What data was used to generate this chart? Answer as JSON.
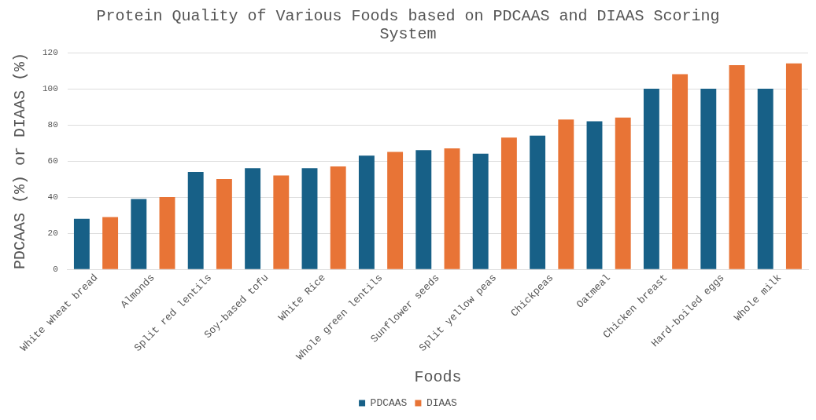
{
  "chart_data": {
    "type": "bar",
    "title": "Protein Quality of Various Foods based on PDCAAS and DIAAS Scoring System",
    "xlabel": "Foods",
    "ylabel": "PDCAAS (%) or DIAAS (%)",
    "categories": [
      "White wheat bread",
      "Almonds",
      "Split red lentils",
      "Soy-based tofu",
      "White Rice",
      "Whole green lentils",
      "Sunflower seeds",
      "Split yellow peas",
      "Chickpeas",
      "Oatmeal",
      "Chicken breast",
      "Hard-boiled eggs",
      "Whole milk"
    ],
    "series": [
      {
        "name": "PDCAAS",
        "color": "#176087",
        "values": [
          28,
          39,
          54,
          56,
          56,
          63,
          66,
          64,
          74,
          82,
          100,
          100,
          100
        ]
      },
      {
        "name": "DIAAS",
        "color": "#e87436",
        "values": [
          29,
          40,
          50,
          52,
          57,
          65,
          67,
          73,
          83,
          84,
          108,
          113,
          114
        ]
      }
    ],
    "ylim": [
      0,
      120
    ],
    "yticks": [
      0,
      20,
      40,
      60,
      80,
      100,
      120
    ],
    "grid": "y",
    "legend": "bottom"
  }
}
